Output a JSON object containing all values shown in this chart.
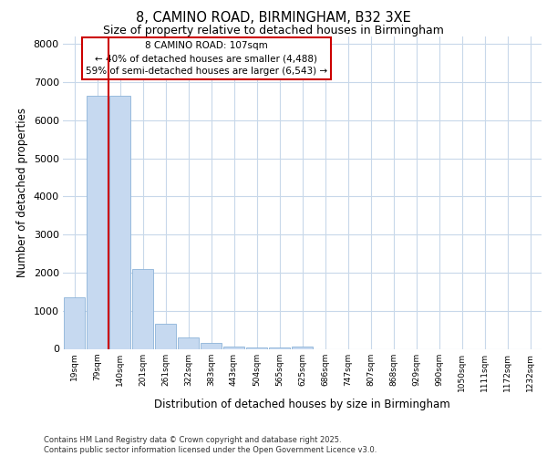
{
  "title_line1": "8, CAMINO ROAD, BIRMINGHAM, B32 3XE",
  "title_line2": "Size of property relative to detached houses in Birmingham",
  "xlabel": "Distribution of detached houses by size in Birmingham",
  "ylabel": "Number of detached properties",
  "footer_line1": "Contains HM Land Registry data © Crown copyright and database right 2025.",
  "footer_line2": "Contains public sector information licensed under the Open Government Licence v3.0.",
  "annotation_line1": "8 CAMINO ROAD: 107sqm",
  "annotation_line2": "← 40% of detached houses are smaller (4,488)",
  "annotation_line3": "59% of semi-detached houses are larger (6,543) →",
  "categories": [
    "19sqm",
    "79sqm",
    "140sqm",
    "201sqm",
    "261sqm",
    "322sqm",
    "383sqm",
    "443sqm",
    "504sqm",
    "565sqm",
    "625sqm",
    "686sqm",
    "747sqm",
    "807sqm",
    "868sqm",
    "929sqm",
    "990sqm",
    "1050sqm",
    "1111sqm",
    "1172sqm",
    "1232sqm"
  ],
  "values": [
    1350,
    6650,
    6650,
    2100,
    650,
    310,
    150,
    70,
    30,
    25,
    70,
    0,
    0,
    0,
    0,
    0,
    0,
    0,
    0,
    0,
    0
  ],
  "bar_color": "#c6d9f0",
  "bar_edge_color": "#8db4d9",
  "red_line_x": 1.5,
  "red_line_color": "#cc0000",
  "ylim": [
    0,
    8200
  ],
  "yticks": [
    0,
    1000,
    2000,
    3000,
    4000,
    5000,
    6000,
    7000,
    8000
  ],
  "grid_color": "#c8d8ea",
  "annotation_box_color": "#ffffff",
  "annotation_box_edge_color": "#cc0000",
  "fig_width": 6.0,
  "fig_height": 5.0,
  "dpi": 100
}
